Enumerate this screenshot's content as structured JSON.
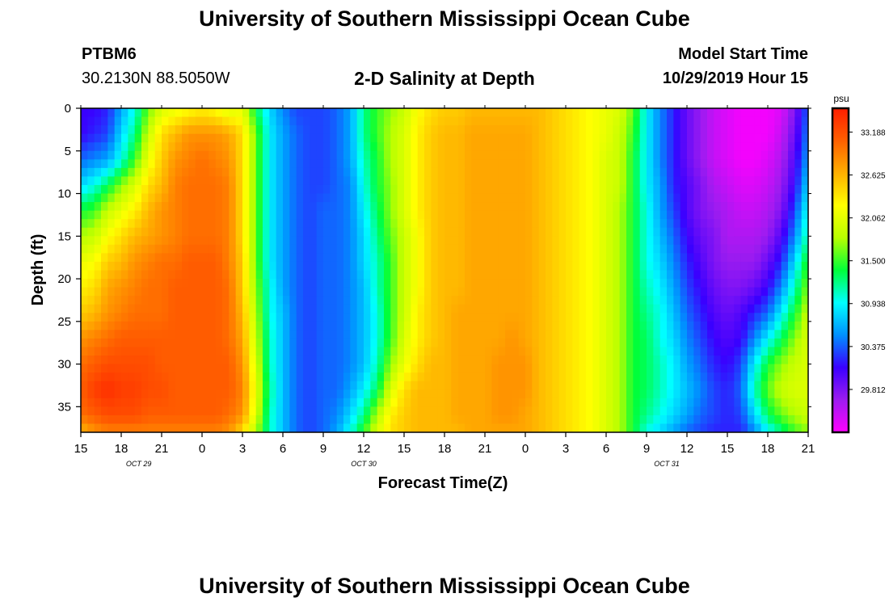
{
  "header": {
    "title": "University of Southern Mississippi Ocean Cube",
    "station_id": "PTBM6",
    "coordinates": "30.2130N 88.5050W",
    "plot_title": "2-D Salinity at Depth",
    "model_start_label": "Model Start Time",
    "model_start_value": "10/29/2019 Hour 15"
  },
  "footer": {
    "title": "University of Southern Mississippi Ocean Cube"
  },
  "chart_data": {
    "type": "heatmap",
    "title": "2-D Salinity at Depth",
    "xlabel": "Forecast Time(Z)",
    "ylabel": "Depth (ft)",
    "x_ticks": [
      "15",
      "18",
      "21",
      "0",
      "3",
      "6",
      "9",
      "12",
      "15",
      "18",
      "21",
      "0",
      "3",
      "6",
      "9",
      "12",
      "15",
      "18",
      "21"
    ],
    "x_hours": [
      0,
      3,
      6,
      9,
      12,
      15,
      18,
      21,
      24,
      27,
      30,
      33,
      36,
      39,
      42,
      45,
      48,
      51,
      54
    ],
    "date_labels": [
      {
        "text": "OCT 29",
        "hour": 4.3
      },
      {
        "text": "OCT 30",
        "hour": 21.0
      },
      {
        "text": "OCT 31",
        "hour": 43.5
      }
    ],
    "y_ticks": [
      0,
      5,
      10,
      15,
      20,
      25,
      30,
      35
    ],
    "ylim": [
      0,
      38
    ],
    "xlim": [
      0,
      54
    ],
    "y_inverted": true,
    "colorbar": {
      "unit": "psu",
      "ticks": [
        "33.188",
        "32.625",
        "32.062",
        "31.500",
        "30.938",
        "30.375",
        "29.812"
      ],
      "tick_values": [
        33.188,
        32.625,
        32.062,
        31.5,
        30.938,
        30.375,
        29.812
      ],
      "range": [
        29.25,
        33.5
      ],
      "colors": [
        "#ff00ff",
        "#9d1cf0",
        "#3a00ff",
        "#0090ff",
        "#00ffff",
        "#00ff3a",
        "#b8ff00",
        "#ffff00",
        "#ffb000",
        "#ff6000",
        "#ff1e00"
      ]
    },
    "grid_columns": [
      0,
      1,
      2,
      3,
      4,
      5,
      6,
      7,
      8,
      9,
      10,
      11,
      12,
      13,
      14,
      15,
      16,
      17,
      18,
      19,
      20,
      21,
      22,
      23,
      24,
      25,
      26,
      27,
      28,
      29,
      30,
      31,
      32,
      33,
      34,
      35,
      36,
      37,
      38,
      39,
      40,
      41,
      42,
      43,
      44,
      45,
      46,
      47,
      48,
      49,
      50,
      51,
      52,
      53,
      54
    ],
    "grid_depths": [
      0,
      3,
      6,
      9,
      12,
      15,
      18,
      21,
      24,
      27,
      30,
      33,
      36,
      38
    ],
    "salinity": [
      [
        30.1,
        30.1,
        30.2,
        30.6,
        31.0,
        31.6,
        32.0,
        32.1,
        32.2,
        32.3,
        32.2,
        32.0,
        32.1,
        31.3,
        30.8,
        30.5,
        30.3,
        30.3,
        30.3,
        30.4,
        30.6,
        31.2,
        31.5,
        31.7,
        31.9,
        32.2,
        32.4,
        32.5,
        32.5,
        32.6,
        32.6,
        32.6,
        32.6,
        32.6,
        32.6,
        32.5,
        32.4,
        32.3,
        32.2,
        32.1,
        32.0,
        31.6,
        30.9,
        30.5,
        30.2,
        29.9,
        29.7,
        29.5,
        29.4,
        29.3,
        29.3,
        29.3,
        29.4,
        29.8,
        30.4
      ],
      [
        30.1,
        30.2,
        30.3,
        30.8,
        31.2,
        31.9,
        32.4,
        32.6,
        32.8,
        32.8,
        32.8,
        32.7,
        32.4,
        31.6,
        30.9,
        30.6,
        30.4,
        30.3,
        30.3,
        30.4,
        30.6,
        31.2,
        31.5,
        31.8,
        32.0,
        32.3,
        32.5,
        32.6,
        32.6,
        32.7,
        32.7,
        32.7,
        32.7,
        32.7,
        32.6,
        32.5,
        32.4,
        32.3,
        32.2,
        32.1,
        31.9,
        31.5,
        30.9,
        30.5,
        30.2,
        29.9,
        29.7,
        29.5,
        29.4,
        29.3,
        29.3,
        29.3,
        29.5,
        29.9,
        30.5
      ],
      [
        30.4,
        30.5,
        30.6,
        31.0,
        31.5,
        32.1,
        32.5,
        32.8,
        32.9,
        33.0,
        32.9,
        32.8,
        32.4,
        31.6,
        30.9,
        30.6,
        30.4,
        30.3,
        30.3,
        30.4,
        30.6,
        31.1,
        31.4,
        31.8,
        32.0,
        32.3,
        32.5,
        32.6,
        32.6,
        32.7,
        32.7,
        32.7,
        32.7,
        32.7,
        32.6,
        32.5,
        32.4,
        32.3,
        32.2,
        32.0,
        31.9,
        31.4,
        30.9,
        30.5,
        30.2,
        29.9,
        29.7,
        29.5,
        29.4,
        29.3,
        29.3,
        29.4,
        29.6,
        30.0,
        30.6
      ],
      [
        30.8,
        31.0,
        31.3,
        31.7,
        32.0,
        32.4,
        32.6,
        32.9,
        33.0,
        33.0,
        33.0,
        32.9,
        32.4,
        31.6,
        30.9,
        30.6,
        30.4,
        30.3,
        30.3,
        30.4,
        30.5,
        31.0,
        31.4,
        31.7,
        32.0,
        32.3,
        32.5,
        32.6,
        32.6,
        32.7,
        32.7,
        32.7,
        32.7,
        32.7,
        32.6,
        32.5,
        32.4,
        32.3,
        32.2,
        32.0,
        31.9,
        31.4,
        30.9,
        30.6,
        30.2,
        30.0,
        29.8,
        29.6,
        29.5,
        29.4,
        29.4,
        29.5,
        29.7,
        30.1,
        30.8
      ],
      [
        31.4,
        31.5,
        31.9,
        32.1,
        32.3,
        32.6,
        32.8,
        32.9,
        33.0,
        33.0,
        33.0,
        32.9,
        32.4,
        31.6,
        30.9,
        30.6,
        30.4,
        30.3,
        30.4,
        30.4,
        30.5,
        30.9,
        31.3,
        31.7,
        32.0,
        32.3,
        32.5,
        32.6,
        32.6,
        32.7,
        32.7,
        32.7,
        32.7,
        32.7,
        32.6,
        32.5,
        32.4,
        32.3,
        32.2,
        32.0,
        31.8,
        31.4,
        31.0,
        30.6,
        30.3,
        30.0,
        29.8,
        29.7,
        29.6,
        29.5,
        29.5,
        29.6,
        29.8,
        30.3,
        31.0
      ],
      [
        31.8,
        31.9,
        32.2,
        32.4,
        32.6,
        32.7,
        32.8,
        32.9,
        33.0,
        33.0,
        33.0,
        32.9,
        32.4,
        31.6,
        30.9,
        30.6,
        30.4,
        30.3,
        30.4,
        30.4,
        30.5,
        30.8,
        31.2,
        31.6,
        31.9,
        32.2,
        32.5,
        32.6,
        32.6,
        32.7,
        32.7,
        32.7,
        32.7,
        32.7,
        32.6,
        32.5,
        32.4,
        32.3,
        32.2,
        32.0,
        31.8,
        31.4,
        31.0,
        30.7,
        30.4,
        30.1,
        29.9,
        29.8,
        29.6,
        29.6,
        29.6,
        29.7,
        30.0,
        30.5,
        31.2
      ],
      [
        32.1,
        32.2,
        32.5,
        32.6,
        32.8,
        32.9,
        33.0,
        33.0,
        33.1,
        33.1,
        33.1,
        32.9,
        32.5,
        31.6,
        30.9,
        30.6,
        30.4,
        30.3,
        30.4,
        30.4,
        30.5,
        30.8,
        31.1,
        31.5,
        31.9,
        32.2,
        32.5,
        32.6,
        32.6,
        32.7,
        32.7,
        32.7,
        32.7,
        32.7,
        32.6,
        32.5,
        32.4,
        32.3,
        32.2,
        32.0,
        31.8,
        31.4,
        31.0,
        30.8,
        30.5,
        30.2,
        30.0,
        29.8,
        29.7,
        29.7,
        29.7,
        29.9,
        30.2,
        30.8,
        31.5
      ],
      [
        32.3,
        32.4,
        32.7,
        32.8,
        32.9,
        33.0,
        33.0,
        33.1,
        33.1,
        33.1,
        33.1,
        33.0,
        32.5,
        31.7,
        31.0,
        30.6,
        30.4,
        30.3,
        30.4,
        30.4,
        30.5,
        30.7,
        31.1,
        31.5,
        31.9,
        32.2,
        32.5,
        32.6,
        32.6,
        32.7,
        32.7,
        32.7,
        32.7,
        32.7,
        32.6,
        32.5,
        32.4,
        32.3,
        32.2,
        32.0,
        31.8,
        31.4,
        31.1,
        30.9,
        30.6,
        30.3,
        30.1,
        29.9,
        29.8,
        29.8,
        29.9,
        30.1,
        30.5,
        31.1,
        31.7
      ],
      [
        32.5,
        32.6,
        32.8,
        32.9,
        33.0,
        33.0,
        33.0,
        33.1,
        33.1,
        33.1,
        33.1,
        33.0,
        32.6,
        31.8,
        31.0,
        30.7,
        30.4,
        30.3,
        30.4,
        30.4,
        30.5,
        30.7,
        31.0,
        31.5,
        31.9,
        32.3,
        32.5,
        32.6,
        32.7,
        32.7,
        32.7,
        32.7,
        32.7,
        32.7,
        32.6,
        32.5,
        32.4,
        32.3,
        32.2,
        32.0,
        31.8,
        31.4,
        31.2,
        31.0,
        30.7,
        30.4,
        30.2,
        30.0,
        29.9,
        30.0,
        30.2,
        30.4,
        30.9,
        31.4,
        31.9
      ],
      [
        32.8,
        32.9,
        33.0,
        33.1,
        33.1,
        33.1,
        33.1,
        33.1,
        33.1,
        33.1,
        33.1,
        33.0,
        32.7,
        31.9,
        31.1,
        30.7,
        30.4,
        30.3,
        30.4,
        30.4,
        30.5,
        30.7,
        31.0,
        31.5,
        32.0,
        32.3,
        32.5,
        32.6,
        32.7,
        32.7,
        32.7,
        32.7,
        32.8,
        32.7,
        32.6,
        32.5,
        32.4,
        32.3,
        32.2,
        32.0,
        31.8,
        31.4,
        31.3,
        31.0,
        30.8,
        30.5,
        30.3,
        30.1,
        30.0,
        30.1,
        30.5,
        30.9,
        31.3,
        31.7,
        32.0
      ],
      [
        33.0,
        33.1,
        33.2,
        33.2,
        33.2,
        33.2,
        33.1,
        33.1,
        33.1,
        33.1,
        33.1,
        33.1,
        32.8,
        32.0,
        31.1,
        30.7,
        30.4,
        30.3,
        30.4,
        30.4,
        30.5,
        30.7,
        31.1,
        31.7,
        32.1,
        32.4,
        32.6,
        32.6,
        32.7,
        32.7,
        32.7,
        32.8,
        32.8,
        32.8,
        32.6,
        32.5,
        32.4,
        32.3,
        32.2,
        32.0,
        31.8,
        31.4,
        31.3,
        31.1,
        30.9,
        30.6,
        30.4,
        30.2,
        30.1,
        30.3,
        30.9,
        31.4,
        31.7,
        31.9,
        32.0
      ],
      [
        33.1,
        33.3,
        33.4,
        33.3,
        33.3,
        33.2,
        33.2,
        33.1,
        33.1,
        33.1,
        33.1,
        33.1,
        32.9,
        32.1,
        31.2,
        30.7,
        30.4,
        30.3,
        30.4,
        30.4,
        30.6,
        30.9,
        31.3,
        32.0,
        32.4,
        32.6,
        32.6,
        32.6,
        32.7,
        32.7,
        32.7,
        32.8,
        32.8,
        32.8,
        32.6,
        32.5,
        32.4,
        32.3,
        32.2,
        32.0,
        31.8,
        31.4,
        31.3,
        31.1,
        30.9,
        30.7,
        30.5,
        30.3,
        30.2,
        30.4,
        31.1,
        31.6,
        31.9,
        32.0,
        32.0
      ],
      [
        33.0,
        33.1,
        33.2,
        33.2,
        33.2,
        33.1,
        33.1,
        33.1,
        33.1,
        33.1,
        33.1,
        33.0,
        32.8,
        32.0,
        31.1,
        30.7,
        30.4,
        30.3,
        30.4,
        30.5,
        30.8,
        31.2,
        31.8,
        32.3,
        32.5,
        32.6,
        32.6,
        32.6,
        32.7,
        32.7,
        32.7,
        32.8,
        32.8,
        32.7,
        32.6,
        32.5,
        32.4,
        32.3,
        32.2,
        32.0,
        31.8,
        31.4,
        31.2,
        31.0,
        30.8,
        30.6,
        30.4,
        30.3,
        30.2,
        30.3,
        30.8,
        31.3,
        31.6,
        31.8,
        31.9
      ],
      [
        32.6,
        32.8,
        32.9,
        32.9,
        32.9,
        32.9,
        32.9,
        32.9,
        32.9,
        32.9,
        32.9,
        32.8,
        32.4,
        31.8,
        31.1,
        30.7,
        30.4,
        30.3,
        30.4,
        30.6,
        31.0,
        31.5,
        32.0,
        32.4,
        32.5,
        32.6,
        32.6,
        32.6,
        32.6,
        32.7,
        32.7,
        32.7,
        32.7,
        32.7,
        32.6,
        32.5,
        32.4,
        32.3,
        32.2,
        32.0,
        31.8,
        31.4,
        31.0,
        30.8,
        30.6,
        30.4,
        30.3,
        30.2,
        30.2,
        30.2,
        30.5,
        30.9,
        31.2,
        31.5,
        31.7
      ]
    ]
  }
}
